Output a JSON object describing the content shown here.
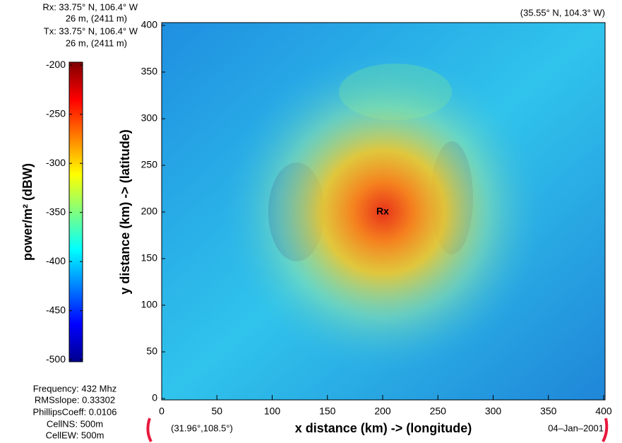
{
  "chart_data": {
    "type": "heatmap",
    "xlabel": "x distance (km) -> (longitude)",
    "ylabel": "y distance (km) -> (latitude)",
    "xlim": [
      0,
      400
    ],
    "xticks": [
      0,
      50,
      100,
      150,
      200,
      250,
      300,
      350,
      400
    ],
    "ylim": [
      0,
      400
    ],
    "yticks": [
      0,
      50,
      100,
      150,
      200,
      250,
      300,
      350,
      400
    ],
    "colorbar": {
      "label": "power/m² (dBW)",
      "lim": [
        -502,
        -197
      ],
      "ticks": [
        -200,
        -250,
        -300,
        -350,
        -400,
        -450,
        -500
      ]
    },
    "marker": {
      "label": "Rx",
      "x": 200,
      "y": 200
    },
    "annotations": [
      "Rx: 33.75° N, 106.4° W",
      "26 m, (2411 m)",
      "Tx: 33.75° N, 106.4° W",
      "26 m, (2411 m)",
      "(35.55° N, 104.3° W)",
      "Frequency: 432 Mhz",
      "RMSslope: 0.33302",
      "PhillipsCoeff: 0.0106",
      "CellNS: 500m",
      "CellEW: 500m",
      "(31.96°,108.5°)",
      "04–Jan–2001"
    ]
  }
}
